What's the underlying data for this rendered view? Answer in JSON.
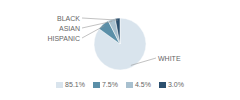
{
  "chart_data": {
    "type": "pie",
    "categories": [
      "WHITE",
      "HISPANIC",
      "ASIAN",
      "BLACK"
    ],
    "values": [
      85.1,
      7.5,
      4.5,
      3.0
    ],
    "value_labels": [
      "85.1%",
      "7.5%",
      "4.5%",
      "3.0%"
    ],
    "colors": [
      "#d9e4ed",
      "#5b8fa8",
      "#a8c0cf",
      "#2b4f6e"
    ],
    "legend": "bottom"
  }
}
